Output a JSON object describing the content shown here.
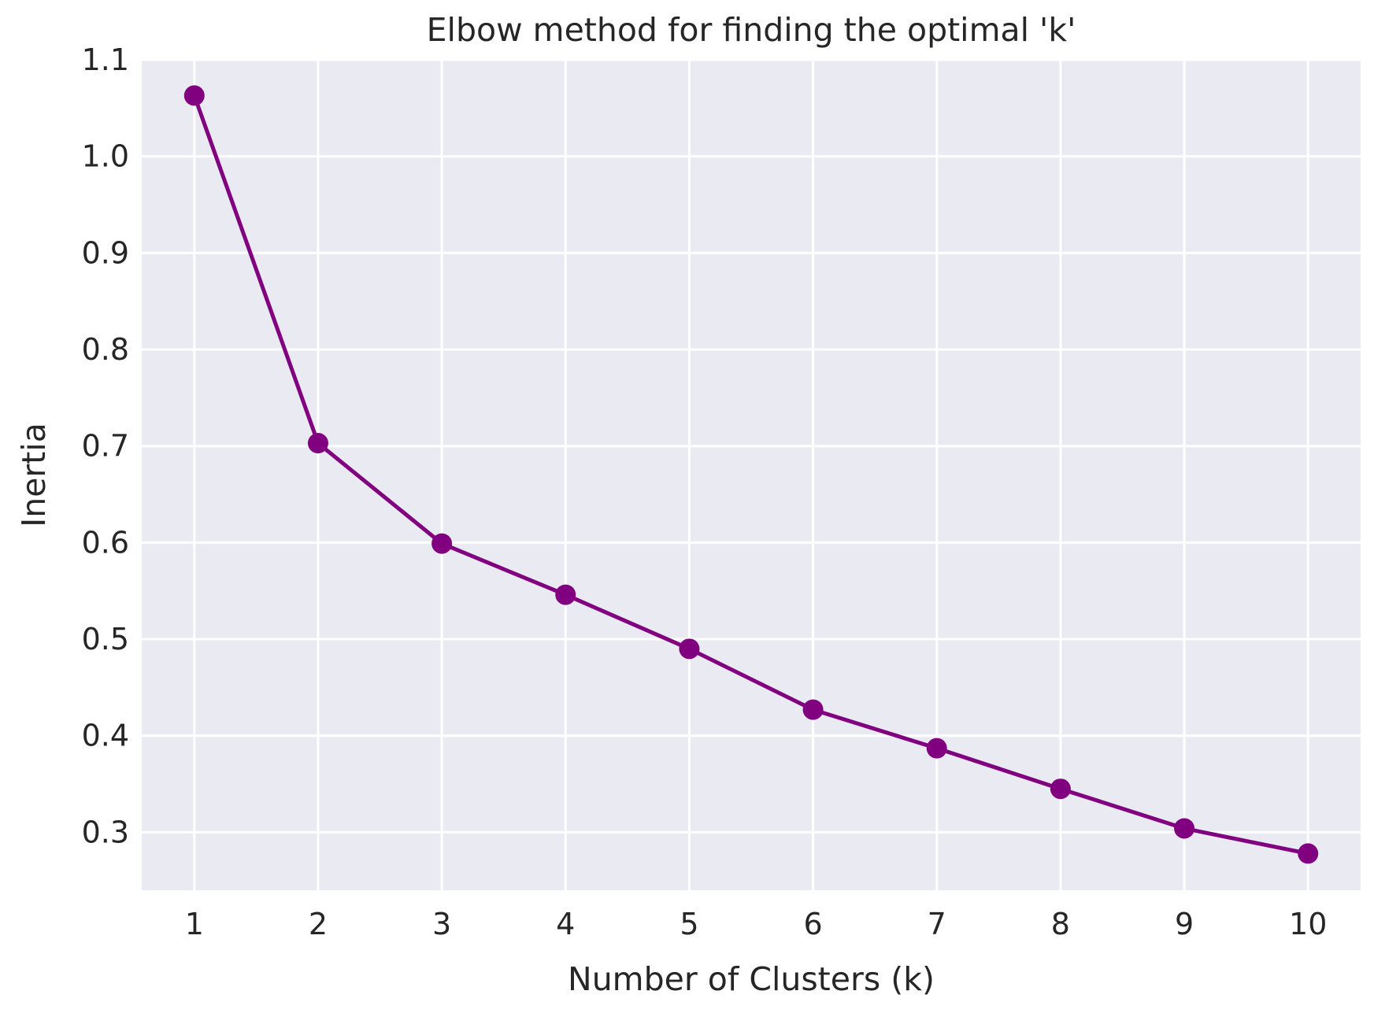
{
  "chart_data": {
    "type": "line",
    "title": "Elbow method for finding the optimal 'k'",
    "xlabel": "Number of Clusters (k)",
    "ylabel": "Inertia",
    "x": [
      1,
      2,
      3,
      4,
      5,
      6,
      7,
      8,
      9,
      10
    ],
    "series": [
      {
        "values": [
          1.063,
          0.703,
          0.599,
          0.546,
          0.49,
          0.427,
          0.387,
          0.345,
          0.304,
          0.278
        ],
        "color": "#800080",
        "marker": "circle"
      }
    ],
    "xlim": [
      0.575,
      10.425
    ],
    "ylim": [
      0.24,
      1.1
    ],
    "xticks": [
      "1",
      "2",
      "3",
      "4",
      "5",
      "6",
      "7",
      "8",
      "9",
      "10"
    ],
    "yticks": [
      "0.3",
      "0.4",
      "0.5",
      "0.6",
      "0.7",
      "0.8",
      "0.9",
      "1.0",
      "1.1"
    ],
    "grid": true,
    "background_color": "#eaeaf2",
    "grid_color": "#ffffff"
  }
}
